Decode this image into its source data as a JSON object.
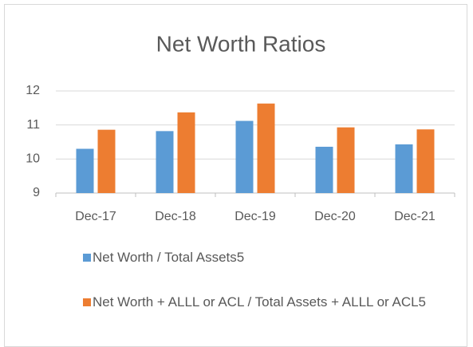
{
  "chart_data": {
    "type": "bar",
    "title": "Net Worth Ratios",
    "categories": [
      "Dec-17",
      "Dec-18",
      "Dec-19",
      "Dec-20",
      "Dec-21"
    ],
    "series": [
      {
        "name": "Net Worth / Total Assets5",
        "color": "#5b9bd5",
        "values": [
          10.3,
          10.82,
          11.12,
          10.36,
          10.43
        ]
      },
      {
        "name": "Net Worth + ALLL or ACL / Total Assets + ALLL or ACL5",
        "color": "#ed7d31",
        "values": [
          10.86,
          11.37,
          11.63,
          10.93,
          10.87
        ]
      }
    ],
    "ylim": [
      9,
      12
    ],
    "yticks": [
      9,
      10,
      11,
      12
    ],
    "grid": true
  }
}
